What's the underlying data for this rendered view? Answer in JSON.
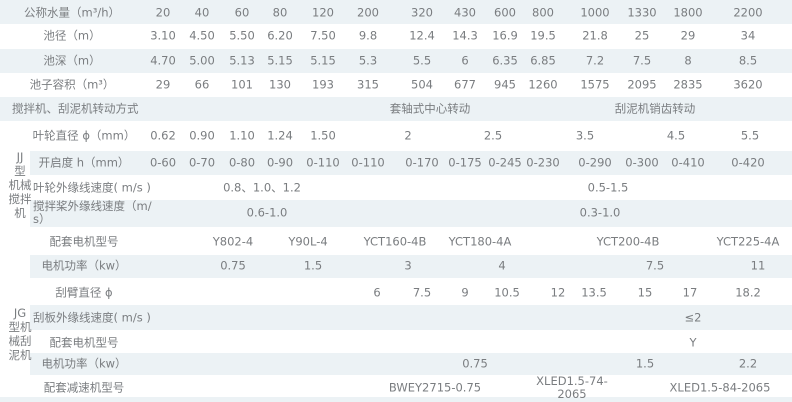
{
  "groups": {
    "jj": "JJ\n型\n机械\n搅拌\n机",
    "jg": "JG\n型机\n械刮\n泥机"
  },
  "rows": [
    {
      "label": "公称水量（m³/h）",
      "cells": [
        "20",
        "40",
        "60",
        "80",
        "120",
        "200",
        "320",
        "430",
        "600",
        "800",
        "1000",
        "1330",
        "1800",
        "2200"
      ]
    },
    {
      "label": "池径（m）",
      "cells": [
        "3.10",
        "4.50",
        "5.50",
        "6.20",
        "7.50",
        "9.8",
        "12.4",
        "14.3",
        "16.9",
        "19.5",
        "21.8",
        "25",
        "29",
        "34"
      ]
    },
    {
      "label": "池深（m）",
      "cells": [
        "4.70",
        "5.00",
        "5.13",
        "5.15",
        "5.15",
        "5.3",
        "5.5",
        "6",
        "6.35",
        "6.85",
        "7.2",
        "7.5",
        "8",
        "8.5"
      ]
    },
    {
      "label": "池子容积（m³）",
      "cells": [
        "29",
        "66",
        "101",
        "130",
        "193",
        "315",
        "504",
        "677",
        "945",
        "1260",
        "1575",
        "2095",
        "2835",
        "3620"
      ]
    },
    {
      "label": "搅拌机、刮泥机转动方式",
      "cells": [
        "套轴式中心转动",
        "刮泥机销齿转动"
      ]
    },
    {
      "label": "叶轮直径 ϕ（mm）",
      "cells": [
        "0.62",
        "0.90",
        "1.10",
        "1.24",
        "1.50",
        "2",
        "2.5",
        "3.5",
        "4.5",
        "5.5"
      ]
    },
    {
      "label": "开启度 h（mm）",
      "cells": [
        "0-60",
        "0-70",
        "0-80",
        "0-90",
        "0-110",
        "0-110",
        "0-170",
        "0-175",
        "0-245",
        "0-230",
        "0-290",
        "0-300",
        "0-410",
        "0-420"
      ]
    },
    {
      "label": "叶轮外缘线速度( m/s )",
      "cells": [
        "0.8、1.0、1.2",
        "0.5-1.5"
      ]
    },
    {
      "label": "搅拌桨外缘线速度（m/\ns）",
      "cells": [
        "0.6-1.0",
        "0.3-1.0"
      ]
    },
    {
      "label": "配套电机型号",
      "cells": [
        "Y802-4",
        "Y90L-4",
        "YCT160-4B",
        "YCT180-4A",
        "YCT200-4B",
        "YCT225-4A"
      ]
    },
    {
      "label": "电机功率（kw）",
      "cells": [
        "0.75",
        "1.5",
        "3",
        "4",
        "7.5",
        "11"
      ]
    },
    {
      "label": "刮臂直径 ϕ",
      "cells": [
        "6",
        "7.5",
        "9",
        "10.5",
        "12",
        "13.5",
        "15",
        "17",
        "18.2"
      ]
    },
    {
      "label": "刮板外缘线速度( m/s )",
      "cells": [
        "≤2"
      ]
    },
    {
      "label": "配套电机型号",
      "cells": [
        "Y"
      ]
    },
    {
      "label": "电机功率（kw）",
      "cells": [
        "0.75",
        "1.5",
        "2.2"
      ]
    },
    {
      "label": "配套减速机型号",
      "cells": [
        "BWEY2715-0.75",
        "XLED1.5-74-\n2065",
        "XLED1.5-84-2065"
      ]
    }
  ]
}
